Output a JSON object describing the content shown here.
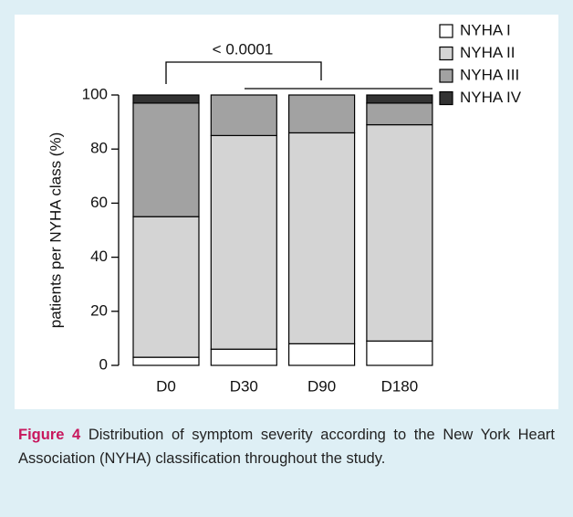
{
  "chart_data": {
    "type": "stacked-bar",
    "ylabel": "patients per NYHA class (%)",
    "annotation": "< 0.0001",
    "categories": [
      "D0",
      "D30",
      "D90",
      "D180"
    ],
    "series": [
      {
        "name": "NYHA I",
        "color": "#ffffff",
        "values": [
          3,
          6,
          8,
          9
        ]
      },
      {
        "name": "NYHA II",
        "color": "#d4d4d4",
        "values": [
          52,
          79,
          78,
          80
        ]
      },
      {
        "name": "NYHA III",
        "color": "#a2a2a2",
        "values": [
          42,
          15,
          14,
          8
        ]
      },
      {
        "name": "NYHA IV",
        "color": "#333333",
        "values": [
          3,
          0,
          0,
          3
        ]
      }
    ],
    "ylim": [
      0,
      100
    ],
    "yticks": [
      0,
      20,
      40,
      60,
      80,
      100
    ],
    "legend": "top-right"
  },
  "caption": {
    "label": "Figure 4",
    "text": "Distribution of symptom severity according to the New York Heart Association (NYHA) classification throughout the study."
  }
}
